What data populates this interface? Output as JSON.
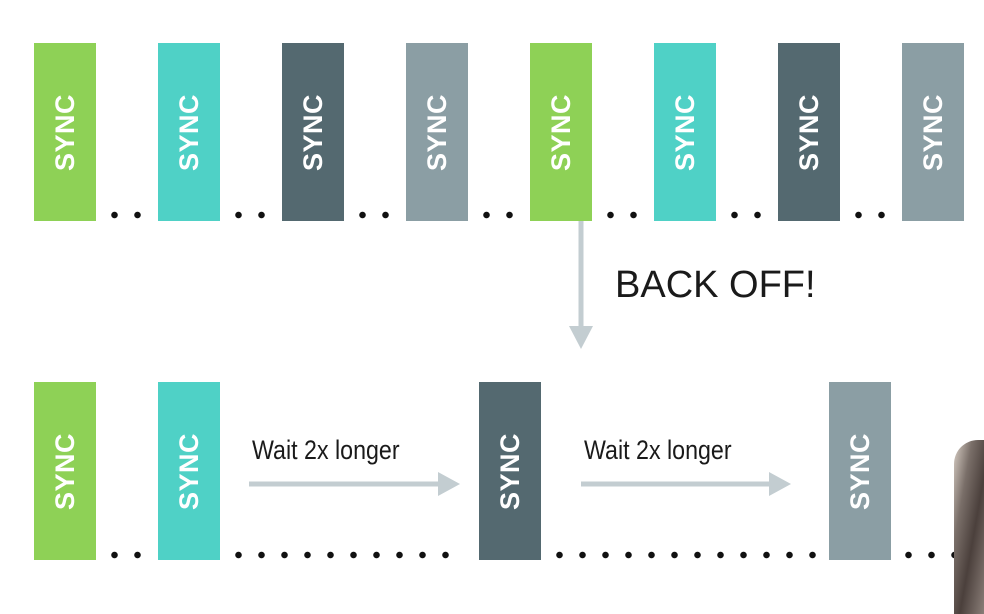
{
  "colors": {
    "green": "#8ed156",
    "teal": "#4fd1c6",
    "dark_slate": "#546970",
    "gray": "#8b9ea4",
    "arrow": "#c3cdd1",
    "dots": "#111111"
  },
  "top_row": {
    "bars": [
      {
        "label": "SYNC",
        "color": "green"
      },
      {
        "label": "SYNC",
        "color": "teal"
      },
      {
        "label": "SYNC",
        "color": "dark_slate"
      },
      {
        "label": "SYNC",
        "color": "gray"
      },
      {
        "label": "SYNC",
        "color": "green"
      },
      {
        "label": "SYNC",
        "color": "teal"
      },
      {
        "label": "SYNC",
        "color": "dark_slate"
      },
      {
        "label": "SYNC",
        "color": "gray"
      }
    ]
  },
  "back_off": {
    "label": "BACK OFF!"
  },
  "bottom_row": {
    "bars": [
      {
        "label": "SYNC",
        "color": "green"
      },
      {
        "label": "SYNC",
        "color": "teal"
      },
      {
        "label": "SYNC",
        "color": "dark_slate"
      },
      {
        "label": "SYNC",
        "color": "gray"
      }
    ],
    "waits": [
      {
        "label": "Wait 2x longer"
      },
      {
        "label": "Wait 2x longer"
      }
    ]
  },
  "decorations": {
    "person_icon": "presenter-silhouette-icon"
  }
}
